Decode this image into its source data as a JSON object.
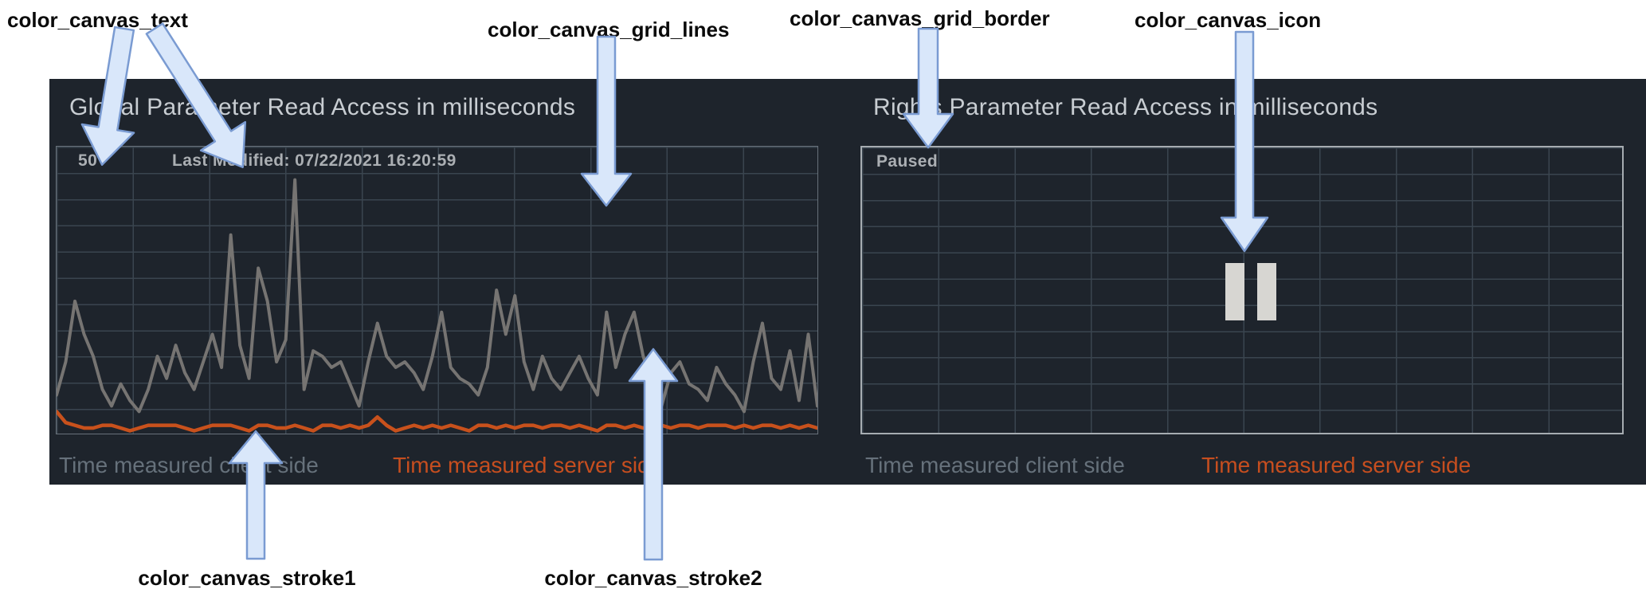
{
  "annotations": {
    "text": {
      "label": "color_canvas_text"
    },
    "grid_lines": {
      "label": "color_canvas_grid_lines"
    },
    "grid_border": {
      "label": "color_canvas_grid_border"
    },
    "icon": {
      "label": "color_canvas_icon"
    },
    "stroke1": {
      "label": "color_canvas_stroke1"
    },
    "stroke2": {
      "label": "color_canvas_stroke2"
    }
  },
  "colors": {
    "color_canvas_background": "#1e242c",
    "color_canvas_grid_lines": "#3a454f",
    "color_canvas_grid_border": "#a6acb1",
    "color_canvas_plot_border": "#68717a",
    "color_canvas_text": "#abafb3",
    "color_canvas_icon": "#d7d6d2",
    "color_canvas_stroke1": "#c8511c",
    "color_canvas_stroke2": "#767472",
    "color_title_text": "#c8cdd2",
    "color_legend_client": "#66717b",
    "color_legend_server": "#c64e1f",
    "color_arrow_fill": "#d9e7fa",
    "color_arrow_stroke": "#7a9bd2",
    "color_annotation_text": "#0a0a0a"
  },
  "chart_data": [
    {
      "type": "line",
      "title": "Global Parameter Read Access in milliseconds",
      "y_tick_labels": [
        "50"
      ],
      "annotation": "Last Modified: 07/22/2021 16:20:59",
      "ylim": [
        0,
        52
      ],
      "grid": true,
      "legend": [
        "Time measured client side",
        "Time measured server side"
      ],
      "legend_position": "bottom",
      "series": [
        {
          "name": "Time measured client side",
          "color_role": "color_canvas_stroke2",
          "values": [
            7,
            13,
            24,
            18,
            14,
            8,
            5,
            9,
            6,
            4,
            8,
            14,
            10,
            16,
            11,
            8,
            13,
            18,
            12,
            36,
            16,
            10,
            30,
            24,
            13,
            17,
            46,
            8,
            15,
            14,
            12,
            13,
            9,
            5,
            13,
            20,
            14,
            12,
            13,
            11,
            8,
            14,
            22,
            12,
            10,
            9,
            7,
            12,
            26,
            18,
            25,
            13,
            8,
            14,
            10,
            8,
            11,
            14,
            10,
            7,
            22,
            12,
            18,
            22,
            14,
            9,
            5,
            11,
            13,
            9,
            8,
            6,
            12,
            9,
            7,
            4,
            13,
            20,
            10,
            8,
            15,
            6,
            18,
            5
          ]
        },
        {
          "name": "Time measured server side",
          "color_role": "color_canvas_stroke1",
          "values": [
            4,
            2,
            1.5,
            1,
            1,
            1.5,
            1.5,
            1,
            0.5,
            1,
            1.5,
            1.5,
            1.5,
            1.5,
            1,
            0.5,
            1,
            1.5,
            1.5,
            1.5,
            1,
            0.5,
            1.5,
            1.5,
            1,
            1,
            1.5,
            1,
            0.5,
            1.5,
            1.5,
            1,
            1.5,
            1,
            1.5,
            3,
            1.5,
            0.5,
            1,
            1.5,
            1,
            1.5,
            1,
            1.5,
            1,
            0.5,
            1.5,
            1.5,
            1,
            1.5,
            1,
            1.5,
            1.5,
            1,
            1.5,
            1.5,
            1,
            1.5,
            1,
            0.5,
            1.5,
            1.5,
            1,
            1.5,
            1,
            1.5,
            1.5,
            1,
            1.5,
            1.5,
            1,
            1.5,
            1.5,
            1.5,
            1,
            1.5,
            1,
            1.5,
            1.5,
            1,
            1.5,
            1,
            1.5,
            1
          ]
        }
      ]
    },
    {
      "type": "line",
      "title": "Rights Parameter Read Access in milliseconds",
      "status": "Paused",
      "icon": "pause-icon",
      "ylim": [
        0,
        52
      ],
      "grid": true,
      "legend": [
        "Time measured client side",
        "Time measured server side"
      ],
      "legend_position": "bottom",
      "series": []
    }
  ]
}
